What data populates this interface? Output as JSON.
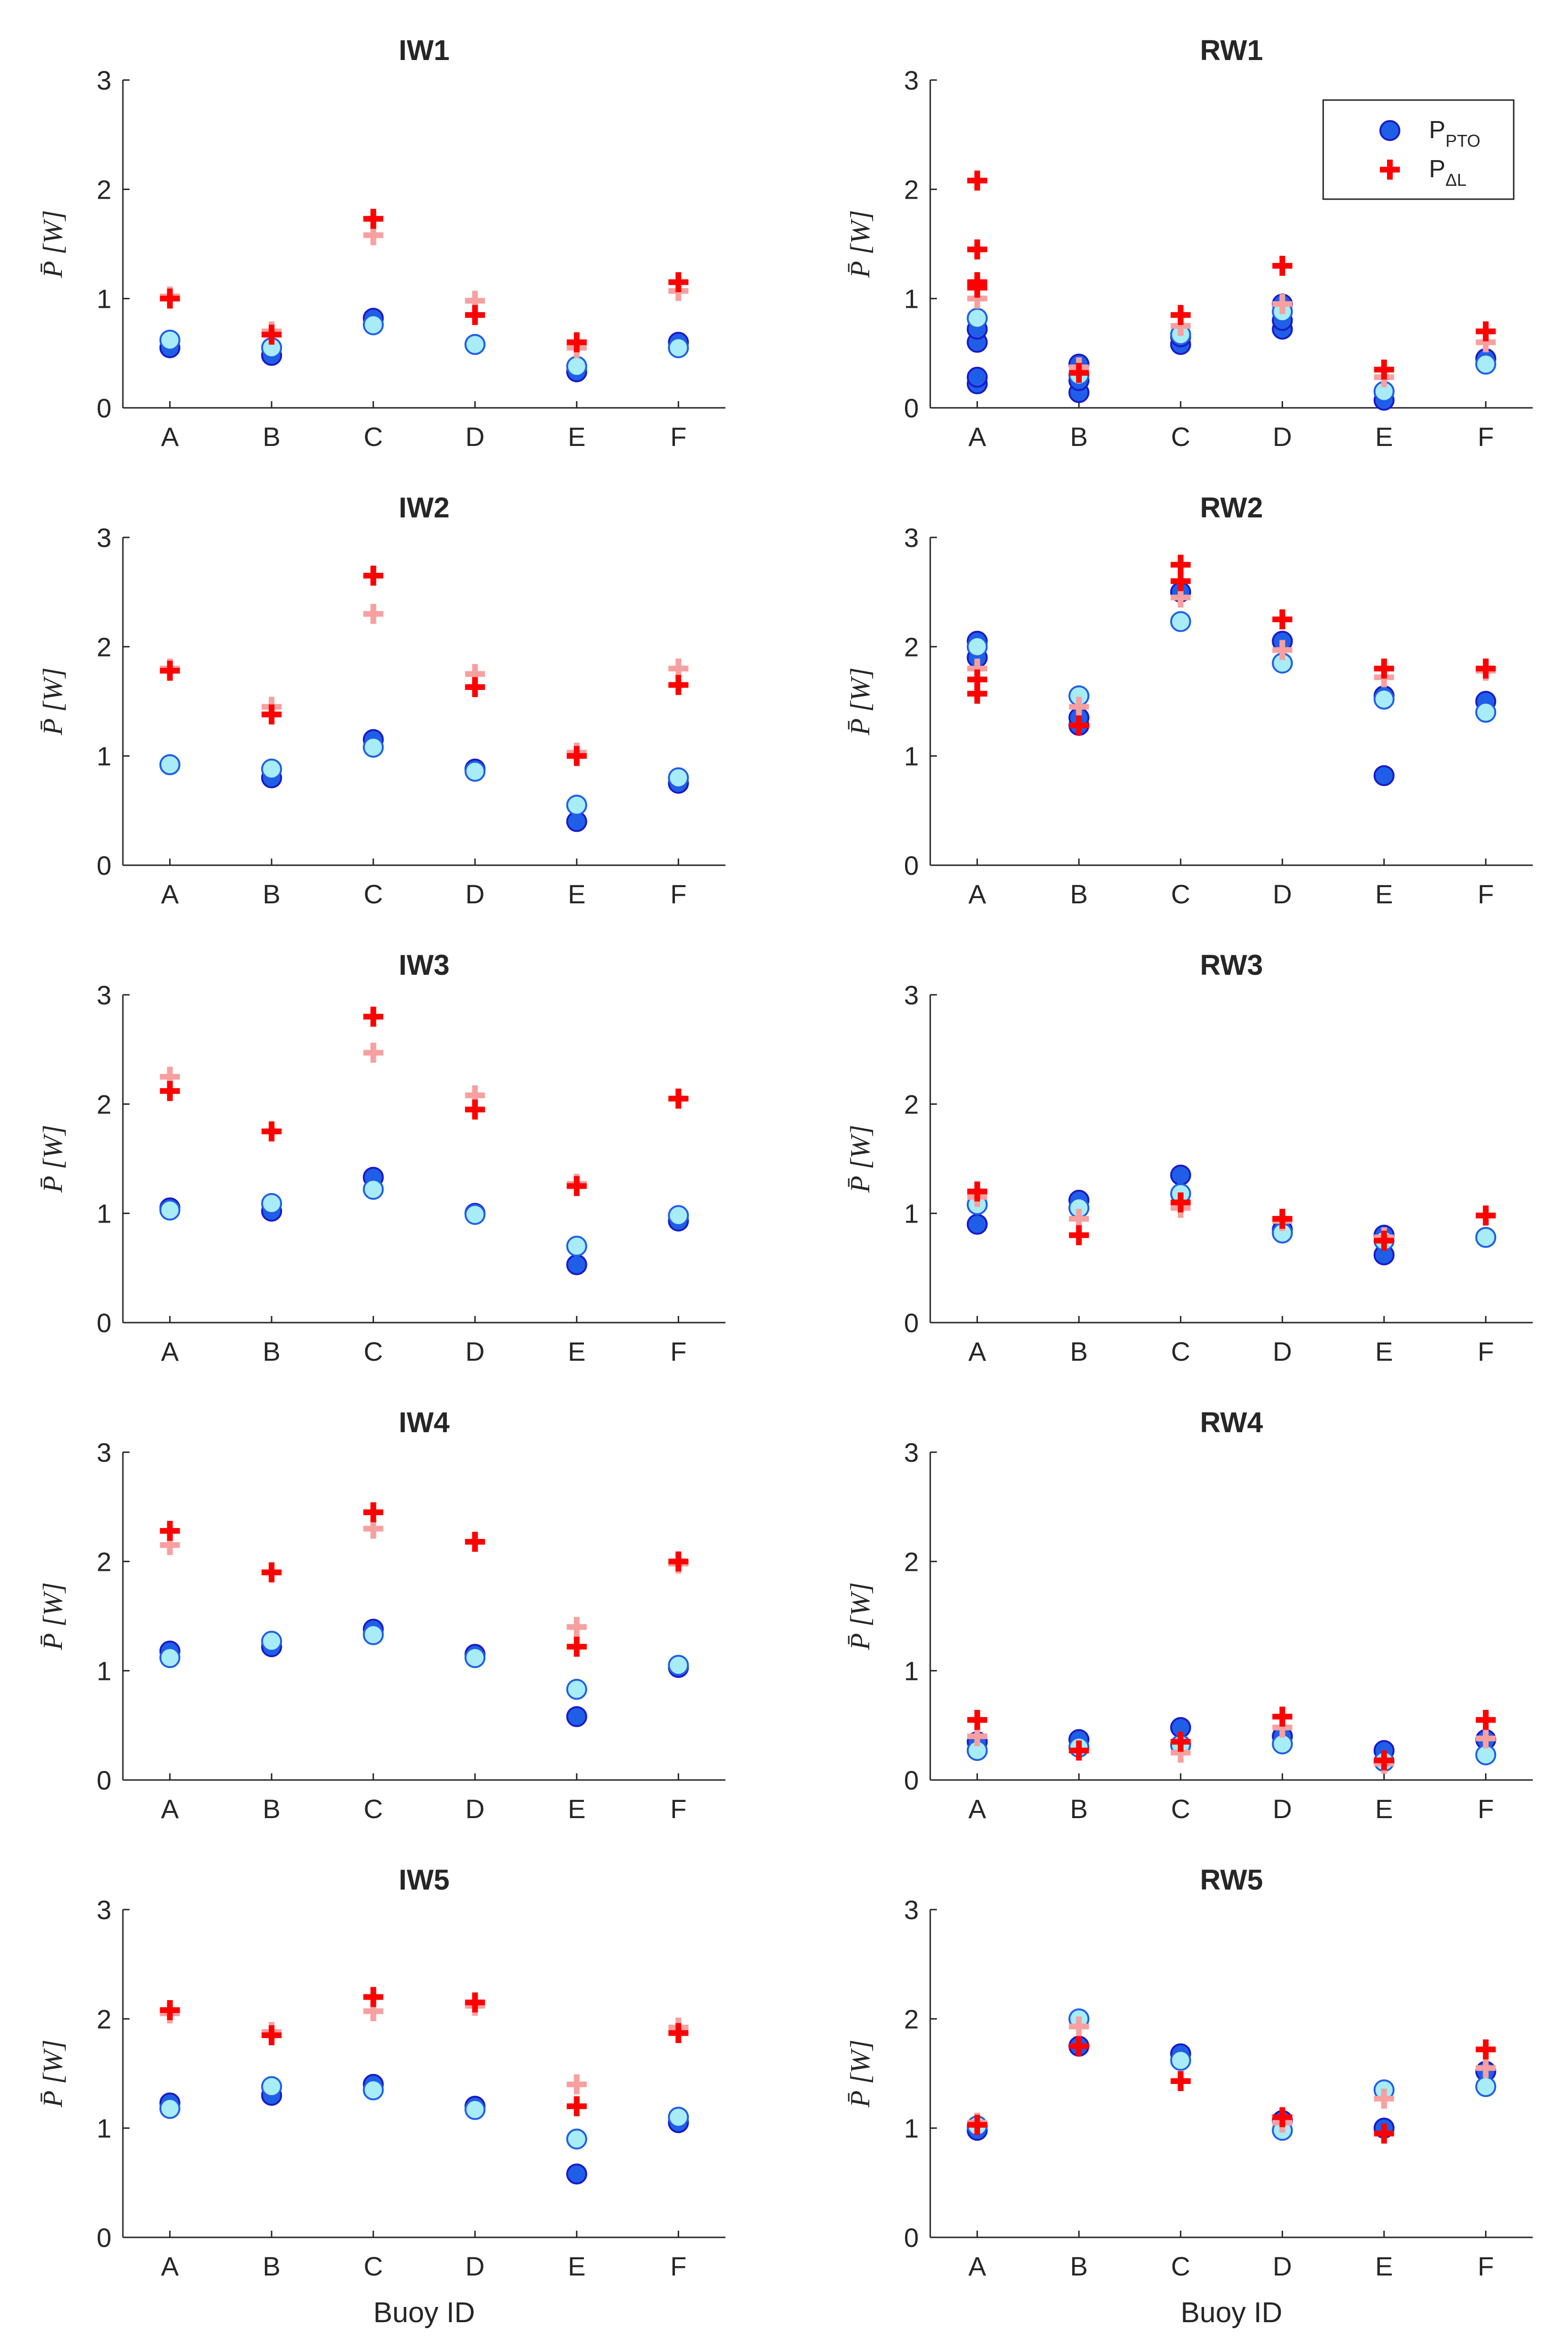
{
  "chart_data": {
    "type": "scatter",
    "categories": [
      "A",
      "B",
      "C",
      "D",
      "E",
      "F"
    ],
    "ylabel": "P̄ [W]",
    "xlabel": "Buoy ID",
    "ylim": [
      0,
      3
    ],
    "yticks": [
      "0",
      "1",
      "2",
      "3"
    ],
    "legend": {
      "position": "top-right",
      "entries": [
        {
          "main": "P",
          "sub": "PTO",
          "marker": "circle"
        },
        {
          "main": "P",
          "sub": "ΔL",
          "marker": "plus"
        }
      ]
    },
    "colors": {
      "pto_dark": "#1f5fe8",
      "pto_dark_edge": "#1a1ac8",
      "pto_light": "#a8ecf7",
      "pto_light_edge": "#1f5fe8",
      "dl_dark": "#ff0000",
      "dl_light": "#f7a0a0",
      "axis": "#262626"
    },
    "panels": [
      {
        "title": "IW1",
        "pto_dark": [
          [
            0.55
          ],
          [
            0.48
          ],
          [
            0.82
          ],
          [
            0.58
          ],
          [
            0.33
          ],
          [
            0.6
          ]
        ],
        "pto_light": [
          [
            0.62
          ],
          [
            0.55
          ],
          [
            0.76
          ],
          [
            0.58
          ],
          [
            0.38
          ],
          [
            0.55
          ]
        ],
        "dl_dark": [
          [
            1.0
          ],
          [
            0.67
          ],
          [
            1.73
          ],
          [
            0.85
          ],
          [
            0.6
          ],
          [
            1.15
          ]
        ],
        "dl_light": [
          [
            1.02
          ],
          [
            0.7
          ],
          [
            1.58
          ],
          [
            0.98
          ],
          [
            0.55
          ],
          [
            1.07
          ]
        ]
      },
      {
        "title": "RW1",
        "pto_dark": [
          [
            0.22,
            0.28,
            0.6,
            0.72
          ],
          [
            0.14,
            0.25,
            0.4
          ],
          [
            0.58,
            0.65
          ],
          [
            0.72,
            0.8,
            0.95
          ],
          [
            0.07,
            0.15
          ],
          [
            0.45
          ]
        ],
        "pto_light": [
          [
            0.82
          ],
          [
            0.3
          ],
          [
            0.67
          ],
          [
            0.88
          ],
          [
            0.15
          ],
          [
            0.4
          ]
        ],
        "dl_dark": [
          [
            1.1,
            1.15,
            1.45,
            2.08
          ],
          [
            0.32
          ],
          [
            0.85
          ],
          [
            1.3
          ],
          [
            0.35
          ],
          [
            0.7
          ]
        ],
        "dl_light": [
          [
            1.0
          ],
          [
            0.37
          ],
          [
            0.75
          ],
          [
            0.95
          ],
          [
            0.28
          ],
          [
            0.6
          ]
        ]
      },
      {
        "title": "IW2",
        "pto_dark": [
          [
            0.92
          ],
          [
            0.8
          ],
          [
            1.15
          ],
          [
            0.88
          ],
          [
            0.4
          ],
          [
            0.75
          ]
        ],
        "pto_light": [
          [
            0.92
          ],
          [
            0.88
          ],
          [
            1.08
          ],
          [
            0.86
          ],
          [
            0.55
          ],
          [
            0.8
          ]
        ],
        "dl_dark": [
          [
            1.78
          ],
          [
            1.38
          ],
          [
            2.65
          ],
          [
            1.63
          ],
          [
            1.0
          ],
          [
            1.65
          ]
        ],
        "dl_light": [
          [
            1.8
          ],
          [
            1.45
          ],
          [
            2.3
          ],
          [
            1.75
          ],
          [
            1.03
          ],
          [
            1.8
          ]
        ]
      },
      {
        "title": "RW2",
        "pto_dark": [
          [
            1.9,
            2.05
          ],
          [
            1.28,
            1.35
          ],
          [
            2.5
          ],
          [
            2.05
          ],
          [
            0.82,
            1.55
          ],
          [
            1.5
          ]
        ],
        "pto_light": [
          [
            2.0
          ],
          [
            1.55
          ],
          [
            2.23
          ],
          [
            1.85
          ],
          [
            1.52
          ],
          [
            1.4
          ]
        ],
        "dl_dark": [
          [
            1.57,
            1.7
          ],
          [
            1.28
          ],
          [
            2.6,
            2.75
          ],
          [
            2.25
          ],
          [
            1.8
          ],
          [
            1.8
          ]
        ],
        "dl_light": [
          [
            1.8
          ],
          [
            1.45
          ],
          [
            2.45
          ],
          [
            1.97
          ],
          [
            1.72
          ],
          [
            1.78
          ]
        ]
      },
      {
        "title": "IW3",
        "pto_dark": [
          [
            1.05
          ],
          [
            1.02
          ],
          [
            1.33
          ],
          [
            1.0
          ],
          [
            0.53
          ],
          [
            0.93
          ]
        ],
        "pto_light": [
          [
            1.03
          ],
          [
            1.09
          ],
          [
            1.22
          ],
          [
            0.99
          ],
          [
            0.7
          ],
          [
            0.98
          ]
        ],
        "dl_dark": [
          [
            2.12
          ],
          [
            1.75
          ],
          [
            2.8
          ],
          [
            1.95
          ],
          [
            1.25
          ],
          [
            2.05
          ]
        ],
        "dl_light": [
          [
            2.25
          ],
          [
            1.75
          ],
          [
            2.47
          ],
          [
            2.08
          ],
          [
            1.27
          ],
          [
            2.05
          ]
        ]
      },
      {
        "title": "RW3",
        "pto_dark": [
          [
            0.9
          ],
          [
            1.12
          ],
          [
            1.35
          ],
          [
            0.85
          ],
          [
            0.62,
            0.8
          ],
          [
            0.78
          ]
        ],
        "pto_light": [
          [
            1.08
          ],
          [
            1.05
          ],
          [
            1.18
          ],
          [
            0.82
          ],
          [
            0.75
          ],
          [
            0.78
          ]
        ],
        "dl_dark": [
          [
            1.2
          ],
          [
            0.8
          ],
          [
            1.1
          ],
          [
            0.95
          ],
          [
            0.75
          ],
          [
            0.98
          ]
        ],
        "dl_light": [
          [
            1.15
          ],
          [
            0.95
          ],
          [
            1.05
          ],
          [
            0.93
          ],
          [
            0.78
          ],
          [
            0.98
          ]
        ]
      },
      {
        "title": "IW4",
        "pto_dark": [
          [
            1.18
          ],
          [
            1.22
          ],
          [
            1.38
          ],
          [
            1.15
          ],
          [
            0.58
          ],
          [
            1.03
          ]
        ],
        "pto_light": [
          [
            1.12
          ],
          [
            1.27
          ],
          [
            1.33
          ],
          [
            1.12
          ],
          [
            0.83
          ],
          [
            1.05
          ]
        ],
        "dl_dark": [
          [
            2.28
          ],
          [
            1.9
          ],
          [
            2.45
          ],
          [
            2.18
          ],
          [
            1.22
          ],
          [
            2.0
          ]
        ],
        "dl_light": [
          [
            2.15
          ],
          [
            1.9
          ],
          [
            2.3
          ],
          [
            2.18
          ],
          [
            1.4
          ],
          [
            1.98
          ]
        ]
      },
      {
        "title": "RW4",
        "pto_dark": [
          [
            0.35
          ],
          [
            0.37
          ],
          [
            0.48
          ],
          [
            0.4
          ],
          [
            0.27
          ],
          [
            0.37
          ]
        ],
        "pto_light": [
          [
            0.27
          ],
          [
            0.3
          ],
          [
            0.32
          ],
          [
            0.33
          ],
          [
            0.17
          ],
          [
            0.23
          ]
        ],
        "dl_dark": [
          [
            0.55
          ],
          [
            0.27
          ],
          [
            0.35
          ],
          [
            0.58
          ],
          [
            0.18
          ],
          [
            0.55
          ]
        ],
        "dl_light": [
          [
            0.4
          ],
          [
            0.27
          ],
          [
            0.25
          ],
          [
            0.48
          ],
          [
            0.15
          ],
          [
            0.38
          ]
        ]
      },
      {
        "title": "IW5",
        "pto_dark": [
          [
            1.23
          ],
          [
            1.3
          ],
          [
            1.4
          ],
          [
            1.2
          ],
          [
            0.58
          ],
          [
            1.05
          ]
        ],
        "pto_light": [
          [
            1.18
          ],
          [
            1.38
          ],
          [
            1.35
          ],
          [
            1.17
          ],
          [
            0.9
          ],
          [
            1.1
          ]
        ],
        "dl_dark": [
          [
            2.08
          ],
          [
            1.85
          ],
          [
            2.2
          ],
          [
            2.15
          ],
          [
            1.2
          ],
          [
            1.87
          ]
        ],
        "dl_light": [
          [
            2.05
          ],
          [
            1.88
          ],
          [
            2.07
          ],
          [
            2.12
          ],
          [
            1.4
          ],
          [
            1.92
          ]
        ]
      },
      {
        "title": "RW5",
        "pto_dark": [
          [
            0.98
          ],
          [
            1.75
          ],
          [
            1.68
          ],
          [
            1.07
          ],
          [
            1.0
          ],
          [
            1.52
          ]
        ],
        "pto_light": [
          [
            1.02
          ],
          [
            2.0
          ],
          [
            1.62
          ],
          [
            0.98
          ],
          [
            1.35
          ],
          [
            1.38
          ]
        ],
        "dl_dark": [
          [
            1.03
          ],
          [
            1.75
          ],
          [
            1.43
          ],
          [
            1.1
          ],
          [
            0.95
          ],
          [
            1.72
          ]
        ],
        "dl_light": [
          [
            1.05
          ],
          [
            1.93
          ],
          [
            1.43
          ],
          [
            1.05
          ],
          [
            1.27
          ],
          [
            1.55
          ]
        ]
      }
    ]
  }
}
